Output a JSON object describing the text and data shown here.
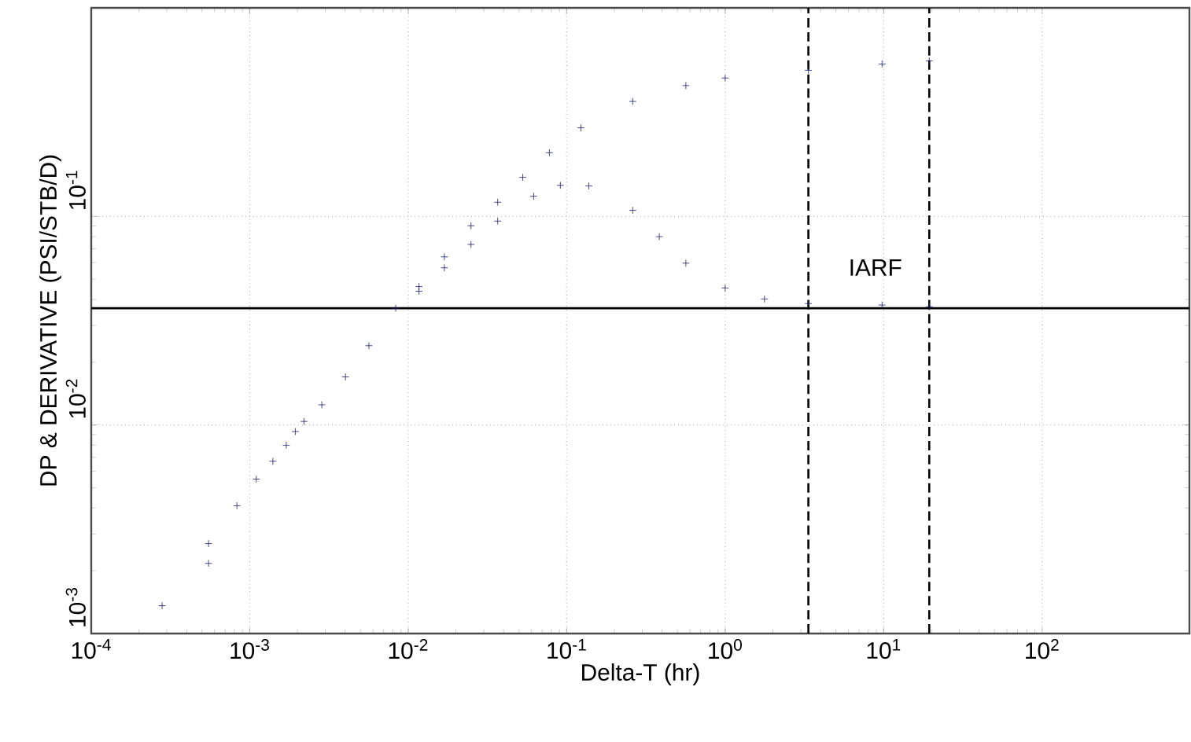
{
  "chart_data": {
    "type": "scatter",
    "xlabel": "Delta-T (hr)",
    "ylabel": "DP & DERIVATIVE (PSI/STB/D)",
    "log": "xy",
    "grid": true,
    "marker": "cross",
    "xlim": [
      0.0001,
      850
    ],
    "ylim": [
      0.001,
      1
    ],
    "xticks": [
      {
        "value": 0.0001,
        "label": "10$^{-4}$"
      },
      {
        "value": 0.001,
        "label": "10$^{-3}$"
      },
      {
        "value": 0.01,
        "label": "10$^{-2}$"
      },
      {
        "value": 0.1,
        "label": "10$^{-1}$"
      },
      {
        "value": 1,
        "label": "10$^{0}$"
      },
      {
        "value": 10,
        "label": "10$^{1}$"
      },
      {
        "value": 100,
        "label": "10$^{2}$"
      }
    ],
    "yticks": [
      {
        "value": 0.001,
        "label": "10$^{-3}$"
      },
      {
        "value": 0.01,
        "label": "10$^{-2}$"
      },
      {
        "value": 0.1,
        "label": "10$^{-1}$"
      }
    ],
    "series": [
      {
        "color": "#1c1c6b",
        "x": [
          0.00028,
          0.00055,
          0.00083,
          0.0011,
          0.0014,
          0.0017,
          0.00194,
          0.0022,
          0.00285,
          0.00402,
          0.00565,
          0.00834,
          0.0117,
          0.0169,
          0.0249,
          0.0367,
          0.0528,
          0.0778,
          0.123,
          0.261,
          0.565,
          1.0,
          3.35,
          9.77,
          19.4
        ],
        "values": [
          0.00136,
          0.0027,
          0.0041,
          0.0055,
          0.0067,
          0.008,
          0.0093,
          0.0104,
          0.0125,
          0.017,
          0.024,
          0.0363,
          0.0461,
          0.064,
          0.0902,
          0.117,
          0.154,
          0.202,
          0.266,
          0.356,
          0.424,
          0.461,
          0.502,
          0.538,
          0.557
        ]
      },
      {
        "color": "#1c1c6b",
        "x": [
          0.00055,
          0.0117,
          0.0169,
          0.0249,
          0.0367,
          0.0619,
          0.0912,
          0.138,
          0.261,
          0.384,
          0.565,
          1.0,
          1.77,
          3.35,
          9.77,
          19.4
        ],
        "values": [
          0.00217,
          0.0438,
          0.0567,
          0.0734,
          0.095,
          0.125,
          0.141,
          0.14,
          0.107,
          0.08,
          0.0597,
          0.0454,
          0.0402,
          0.0382,
          0.0376,
          0.0369
        ]
      }
    ],
    "ref_lines": [
      {
        "axis": "y",
        "value": 0.0363,
        "color": "#000000",
        "line_style": "solid"
      },
      {
        "axis": "x",
        "value": 3.35,
        "color": "#000000",
        "line_style": "dashed"
      },
      {
        "axis": "x",
        "value": 19.4,
        "color": "#000000",
        "line_style": "dashed"
      }
    ],
    "annotations": [
      "IARF"
    ]
  }
}
